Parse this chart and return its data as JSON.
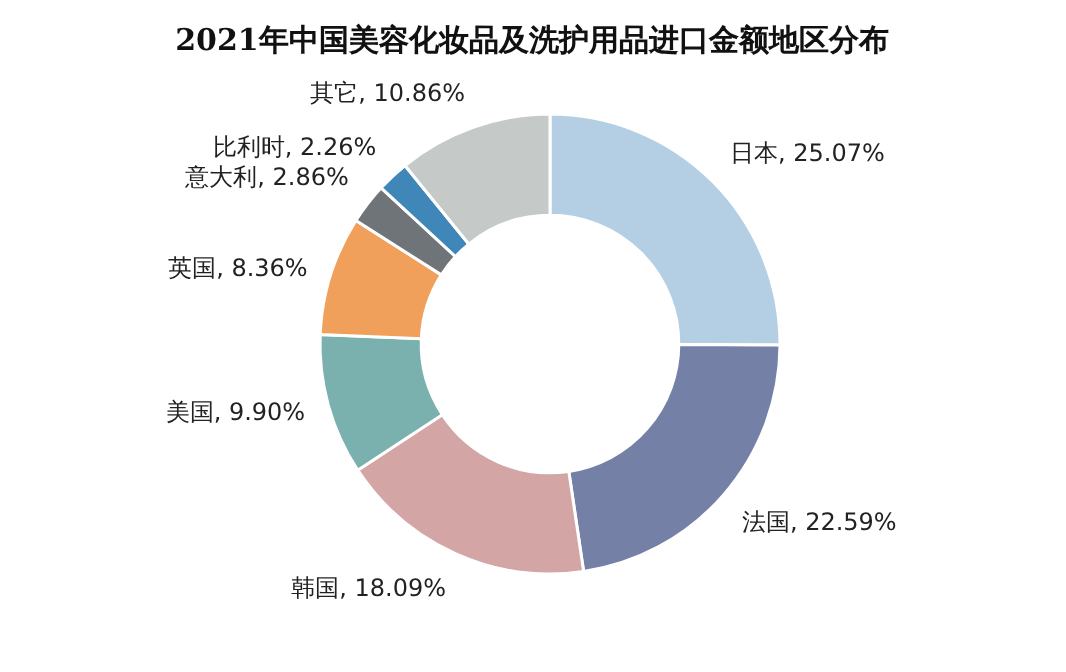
{
  "chart_data": {
    "type": "donut",
    "title": "2021年中国美容化妆品及洗护用品进口金额地区分布",
    "categories": [
      "日本",
      "法国",
      "韩国",
      "美国",
      "英国",
      "意大利",
      "比利时",
      "其它"
    ],
    "values": [
      25.07,
      22.59,
      18.09,
      9.9,
      8.36,
      2.86,
      2.26,
      10.86
    ],
    "colors": [
      "#b4cfe3",
      "#7480a6",
      "#d4a5a5",
      "#7ab0ae",
      "#f0a05a",
      "#6f7478",
      "#3f87b8",
      "#c5cac9"
    ],
    "value_labels": [
      ", 25.07%",
      ", 22.59%",
      ", 18.09%",
      ", 9.90%",
      ", 8.36%",
      ", 2.86%",
      ", 2.26%",
      ", 10.86%"
    ]
  }
}
